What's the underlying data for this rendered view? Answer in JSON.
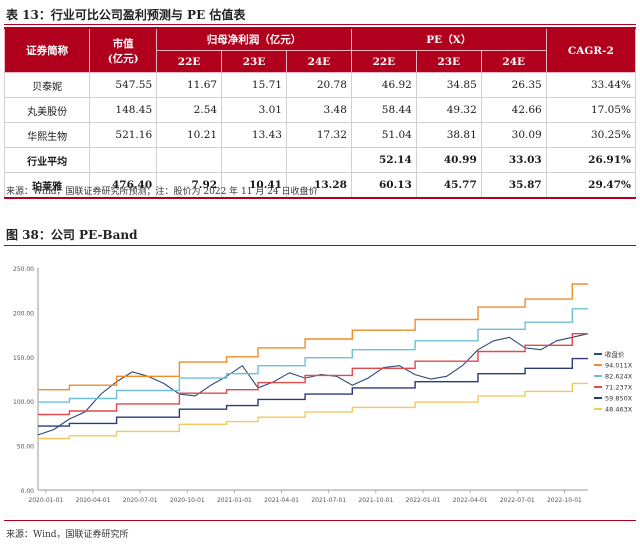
{
  "table": {
    "caption": "表 13：行业可比公司盈利预测与 PE 估值表",
    "headers": {
      "name": "证券简称",
      "mcap": "市值\n(亿元)",
      "profit_group": "归母净利润（亿元）",
      "pe_group": "PE（X）",
      "cagr": "CAGR-2",
      "years": [
        "22E",
        "23E",
        "24E"
      ]
    },
    "rows": [
      {
        "name": "贝泰妮",
        "mcap": "547.55",
        "p22": "11.67",
        "p23": "15.71",
        "p24": "20.78",
        "pe22": "46.92",
        "pe23": "34.85",
        "pe24": "26.35",
        "cagr": "33.44%"
      },
      {
        "name": "丸美股份",
        "mcap": "148.45",
        "p22": "2.54",
        "p23": "3.01",
        "p24": "3.48",
        "pe22": "58.44",
        "pe23": "49.32",
        "pe24": "42.66",
        "cagr": "17.05%"
      },
      {
        "name": "华熙生物",
        "mcap": "521.16",
        "p22": "10.21",
        "p23": "13.43",
        "p24": "17.32",
        "pe22": "51.04",
        "pe23": "38.81",
        "pe24": "30.09",
        "cagr": "30.25%"
      },
      {
        "name": "行业平均",
        "mcap": "",
        "p22": "",
        "p23": "",
        "p24": "",
        "pe22": "52.14",
        "pe23": "40.99",
        "pe24": "33.03",
        "cagr": "26.91%"
      },
      {
        "name": "珀莱雅",
        "mcap": "476.40",
        "p22": "7.92",
        "p23": "10.41",
        "p24": "13.28",
        "pe22": "60.13",
        "pe23": "45.77",
        "pe24": "35.87",
        "cagr": "29.47%"
      }
    ],
    "source": "来源：Wind，国联证券研究所预测；注：股价为 2022 年 11 月 24 日收盘价"
  },
  "chart": {
    "caption": "图 38：公司 PE-Band",
    "source": "来源：Wind，国联证券研究所"
  },
  "chart_data": {
    "type": "line",
    "ylim": [
      0,
      250
    ],
    "y_ticks": [
      "0.00",
      "50.00",
      "100.00",
      "150.00",
      "200.00",
      "250.00"
    ],
    "x_ticks": [
      "2020-01-01",
      "2020-04-01",
      "2020-07-01",
      "2020-10-01",
      "2021-01-01",
      "2021-04-01",
      "2021-07-01",
      "2021-10-01",
      "2022-01-01",
      "2022-04-01",
      "2022-07-01",
      "2022-10-01"
    ],
    "x_tick_pos": [
      0.5,
      3.5,
      6.5,
      9.5,
      12.5,
      15.5,
      18.5,
      21.5,
      24.5,
      27.5,
      30.5,
      33.5
    ],
    "x_range": [
      0,
      35
    ],
    "legend_position": "right",
    "series": [
      {
        "name": "收盘价",
        "color": "#2b4a78",
        "x": [
          0,
          1,
          2,
          3,
          4,
          5,
          6,
          7,
          8,
          9,
          10,
          11,
          12,
          13,
          14,
          15,
          16,
          17,
          18,
          19,
          20,
          21,
          22,
          23,
          24,
          25,
          26,
          27,
          28,
          29,
          30,
          31,
          32,
          33,
          34,
          35
        ],
        "values": [
          62,
          68,
          80,
          88,
          108,
          122,
          133,
          128,
          120,
          108,
          106,
          118,
          128,
          140,
          115,
          122,
          132,
          126,
          130,
          128,
          118,
          126,
          138,
          140,
          130,
          125,
          128,
          140,
          158,
          168,
          172,
          160,
          158,
          168,
          172,
          176
        ]
      },
      {
        "name": "94.011X",
        "color": "#f28c28",
        "x": [
          0,
          2,
          2,
          5,
          5,
          9,
          9,
          12,
          12,
          14,
          14,
          17,
          17,
          20,
          20,
          24,
          24,
          28,
          28,
          31,
          31,
          34,
          34,
          35
        ],
        "values": [
          113,
          113,
          118,
          118,
          128,
          128,
          144,
          144,
          150,
          150,
          160,
          160,
          170,
          170,
          180,
          180,
          192,
          192,
          206,
          206,
          215,
          215,
          232,
          232
        ]
      },
      {
        "name": "82.624X",
        "color": "#6ec0d6",
        "x": [
          0,
          2,
          2,
          5,
          5,
          9,
          9,
          12,
          12,
          14,
          14,
          17,
          17,
          20,
          20,
          24,
          24,
          28,
          28,
          31,
          31,
          34,
          34,
          35
        ],
        "values": [
          99,
          99,
          103,
          103,
          112,
          112,
          126,
          126,
          131,
          131,
          140,
          140,
          149,
          149,
          158,
          158,
          168,
          168,
          181,
          181,
          189,
          189,
          204,
          204
        ]
      },
      {
        "name": "71.237X",
        "color": "#e04a4a",
        "x": [
          0,
          2,
          2,
          5,
          5,
          9,
          9,
          12,
          12,
          14,
          14,
          17,
          17,
          20,
          20,
          24,
          24,
          28,
          28,
          31,
          31,
          34,
          34,
          35
        ],
        "values": [
          85,
          85,
          89,
          89,
          97,
          97,
          109,
          109,
          113,
          113,
          121,
          121,
          129,
          129,
          137,
          137,
          145,
          145,
          156,
          156,
          163,
          163,
          176,
          176
        ]
      },
      {
        "name": "59.850X",
        "color": "#2a3a7a",
        "x": [
          0,
          2,
          2,
          5,
          5,
          9,
          9,
          12,
          12,
          14,
          14,
          17,
          17,
          20,
          20,
          24,
          24,
          28,
          28,
          31,
          31,
          34,
          34,
          35
        ],
        "values": [
          72,
          72,
          75,
          75,
          82,
          82,
          91,
          91,
          95,
          95,
          102,
          102,
          108,
          108,
          115,
          115,
          122,
          122,
          131,
          131,
          137,
          137,
          148,
          148
        ]
      },
      {
        "name": "48.463X",
        "color": "#f5c85a",
        "x": [
          0,
          2,
          2,
          5,
          5,
          9,
          9,
          12,
          12,
          14,
          14,
          17,
          17,
          20,
          20,
          24,
          24,
          28,
          28,
          31,
          31,
          34,
          34,
          35
        ],
        "values": [
          58,
          58,
          61,
          61,
          66,
          66,
          74,
          74,
          77,
          77,
          82,
          82,
          88,
          88,
          93,
          93,
          99,
          99,
          106,
          106,
          111,
          111,
          120,
          120
        ]
      }
    ]
  }
}
